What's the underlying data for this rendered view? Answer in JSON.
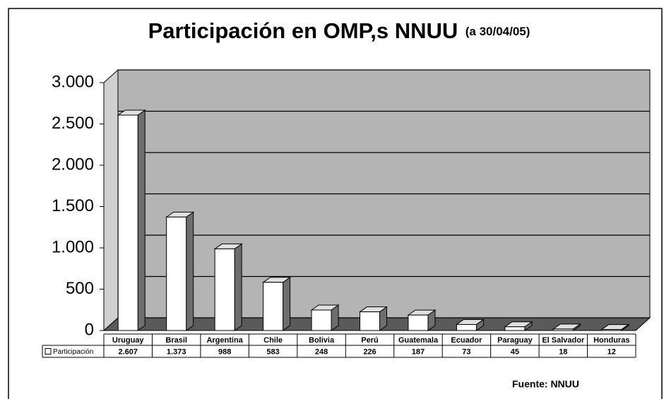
{
  "chart_data": {
    "type": "bar3d",
    "title": "Participación en OMP,s NNUU",
    "subtitle": "(a 30/04/05)",
    "categories": [
      "Uruguay",
      "Brasil",
      "Argentina",
      "Chile",
      "Bolivia",
      "Perú",
      "Guatemala",
      "Ecuador",
      "Paraguay",
      "El Salvador",
      "Honduras"
    ],
    "series": [
      {
        "name": "Participación",
        "color": "#ffffff",
        "values": [
          2607,
          1373,
          988,
          583,
          248,
          226,
          187,
          73,
          45,
          18,
          12
        ],
        "value_labels": [
          "2.607",
          "1.373",
          "988",
          "583",
          "248",
          "226",
          "187",
          "73",
          "45",
          "18",
          "12"
        ]
      }
    ],
    "ylim": [
      0,
      3000
    ],
    "yticks": [
      0,
      500,
      {
        "value": 1000,
        "label": "1.000"
      },
      {
        "value": 1500,
        "label": "1.500"
      },
      {
        "value": 2000,
        "label": "2.000"
      },
      {
        "value": 2500,
        "label": "2.500"
      },
      {
        "value": 3000,
        "label": "3.000"
      }
    ],
    "grid": true,
    "source": "Fuente: NNUU"
  }
}
